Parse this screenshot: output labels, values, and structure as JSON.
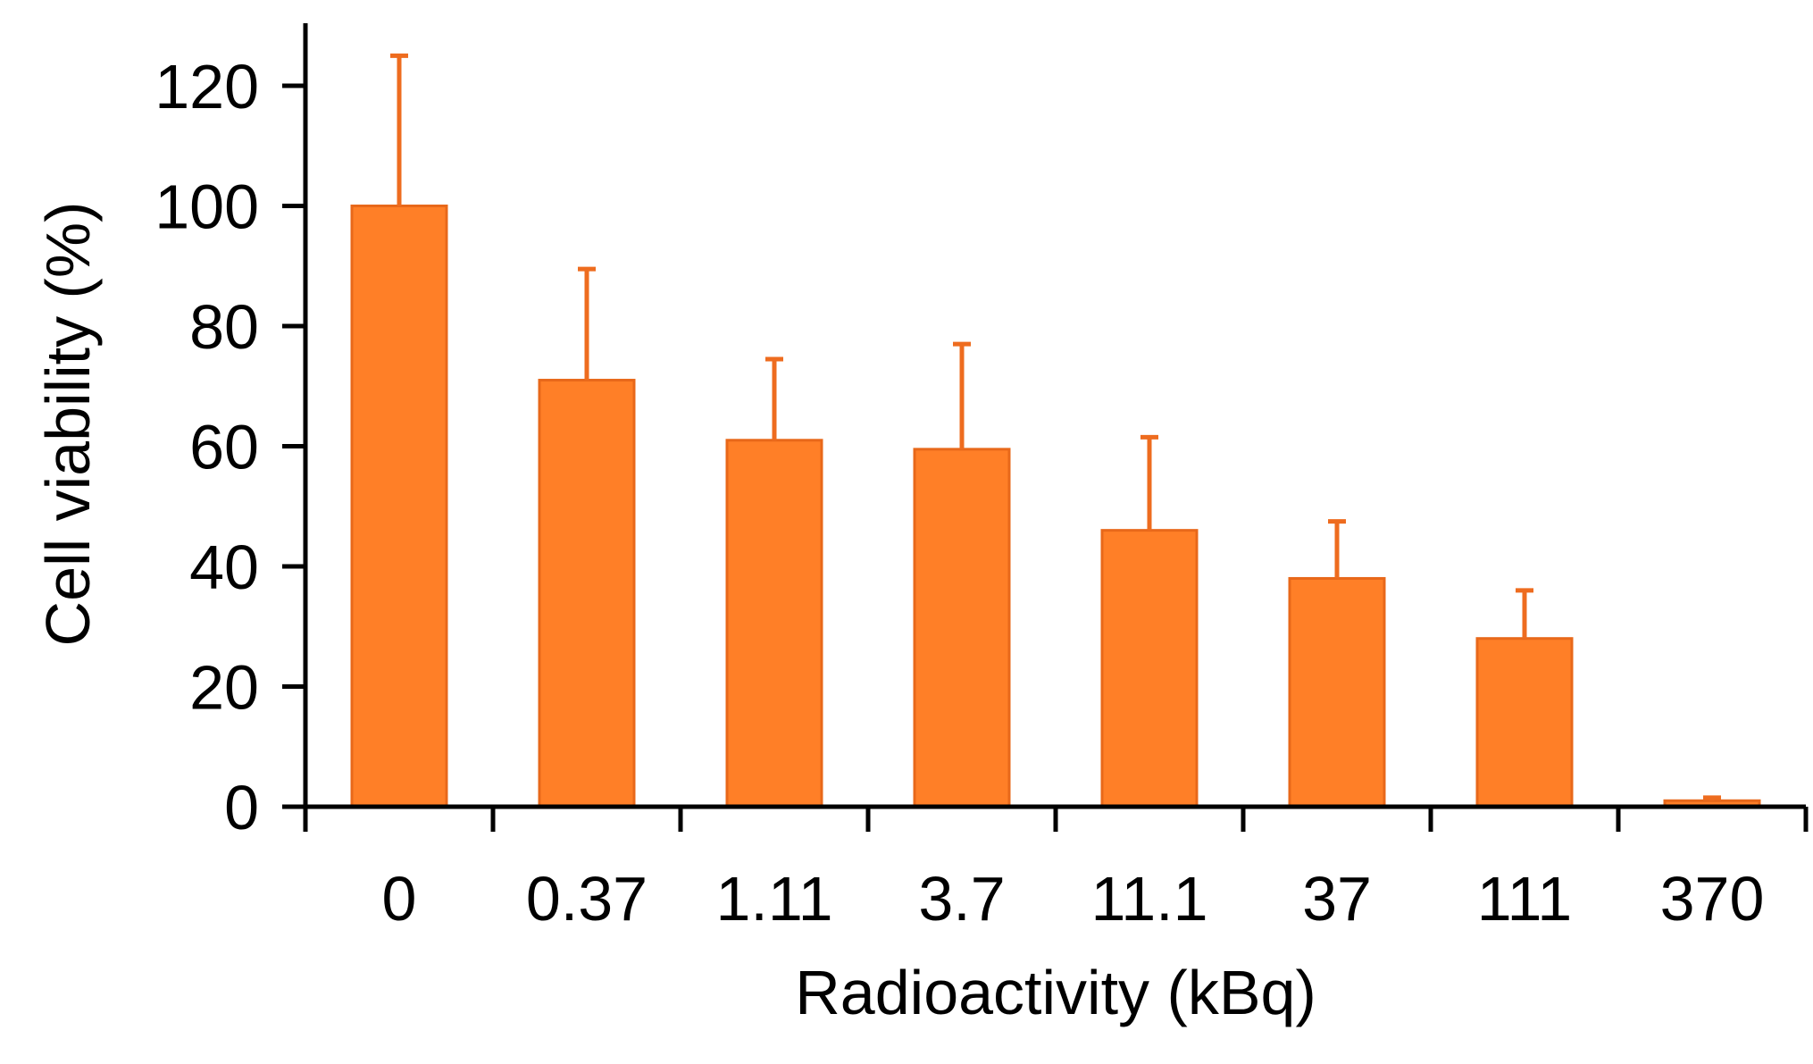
{
  "chart_data": {
    "type": "bar",
    "title": "",
    "xlabel": "Radioactivity (kBq)",
    "ylabel": "Cell viability (%)",
    "categories": [
      "0",
      "0.37",
      "1.11",
      "3.7",
      "11.1",
      "37",
      "111",
      "370"
    ],
    "values": [
      100,
      71,
      61,
      59.5,
      46,
      38,
      28,
      1
    ],
    "error_upper": [
      125,
      89.5,
      74.5,
      77,
      61.5,
      47.5,
      36,
      1.5
    ],
    "ylim": [
      0,
      130
    ],
    "yticks": [
      0,
      20,
      40,
      60,
      80,
      100,
      120
    ],
    "ytick_labels": [
      "0",
      "20",
      "40",
      "60",
      "80",
      "100",
      "120"
    ],
    "grid": false,
    "legend": false,
    "colors": {
      "bar_fill": "#FF7F27",
      "bar_stroke": "#E8681A",
      "error_bar": "#EE6C1F",
      "axis": "#000000"
    }
  }
}
